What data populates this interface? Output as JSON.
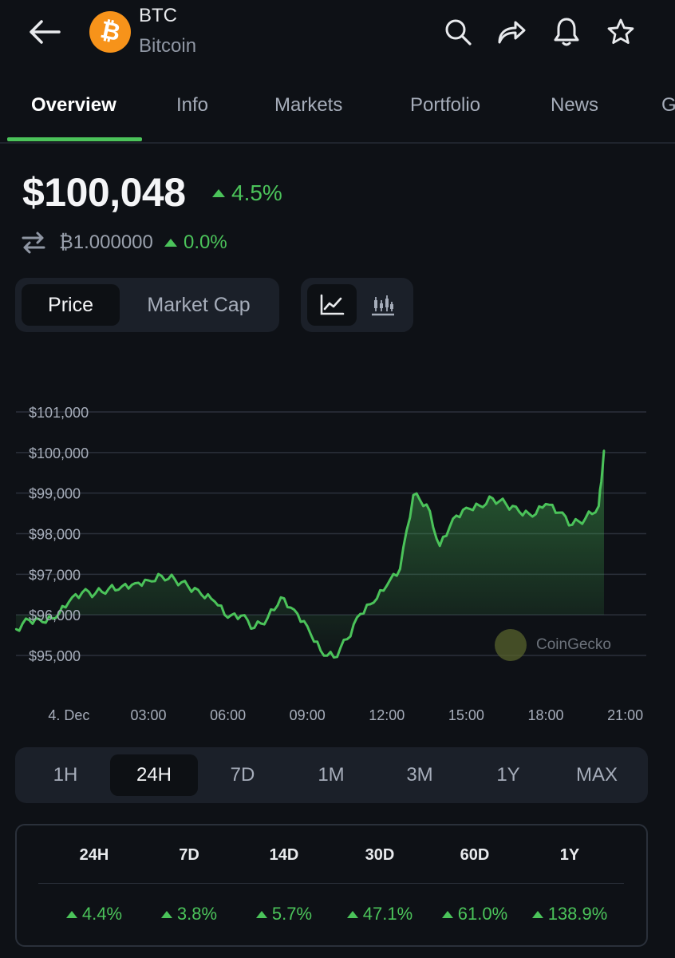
{
  "header": {
    "back_icon": "arrow-left-icon",
    "coin_logo_icon": "bitcoin-logo-icon",
    "symbol": "BTC",
    "name": "Bitcoin",
    "actions": [
      "search-icon",
      "share-icon",
      "bell-icon",
      "star-icon"
    ]
  },
  "tabs": [
    {
      "label": "Overview",
      "active": true
    },
    {
      "label": "Info"
    },
    {
      "label": "Markets"
    },
    {
      "label": "Portfolio"
    },
    {
      "label": "News"
    },
    {
      "label": "G"
    }
  ],
  "price": {
    "value": "$100,048",
    "change": "4.5%",
    "btc_amount": "₿1.000000",
    "btc_change": "0.0%"
  },
  "toggles": {
    "metric_options": [
      "Price",
      "Market Cap"
    ],
    "metric_selected": "Price",
    "chart_type_icons": [
      "line-chart-icon",
      "candlestick-chart-icon"
    ],
    "chart_type_selected": "line-chart-icon"
  },
  "watermark": "CoinGecko",
  "chart_data": {
    "type": "area",
    "x_ticks": [
      "4. Dec",
      "03:00",
      "06:00",
      "09:00",
      "12:00",
      "15:00",
      "18:00",
      "21:00"
    ],
    "y_ticks": [
      "$101,000",
      "$100,000",
      "$99,000",
      "$98,000",
      "$97,000",
      "$96,000",
      "$95,000"
    ],
    "ylim": [
      95000,
      101000
    ],
    "grid": true,
    "line_color": "#4bc35a",
    "series": [
      {
        "x_hours": [
          0,
          0.5,
          1,
          1.5,
          2,
          2.5,
          3,
          3.5,
          4,
          4.5,
          5,
          5.5,
          6,
          6.5,
          7,
          7.5,
          8,
          8.5,
          9,
          9.5,
          10,
          10.5,
          11,
          11.5,
          12,
          12.5,
          13,
          13.5,
          14,
          14.5,
          15,
          15.5,
          16,
          16.5,
          17,
          17.5,
          18,
          18.5,
          19,
          19.5,
          20,
          20.5,
          21,
          21.5,
          22,
          22.2
        ],
        "values": [
          95650,
          95870,
          95820,
          95920,
          96320,
          96550,
          96530,
          96640,
          96700,
          96780,
          96850,
          96960,
          96870,
          96700,
          96500,
          96330,
          95930,
          95980,
          95680,
          95920,
          96430,
          96130,
          95720,
          95120,
          94950,
          95400,
          96020,
          96300,
          96720,
          97130,
          98950,
          98720,
          97700,
          98370,
          98640,
          98690,
          98870,
          98730,
          98540,
          98420,
          98730,
          98520,
          98220,
          98380,
          98680,
          100050
        ]
      }
    ]
  },
  "timeframes": {
    "options": [
      "1H",
      "24H",
      "7D",
      "1M",
      "3M",
      "1Y",
      "MAX"
    ],
    "selected": "24H"
  },
  "performance": {
    "headers": [
      "24H",
      "7D",
      "14D",
      "30D",
      "60D",
      "1Y"
    ],
    "values": [
      "4.4%",
      "3.8%",
      "5.7%",
      "47.1%",
      "61.0%",
      "138.9%"
    ]
  }
}
